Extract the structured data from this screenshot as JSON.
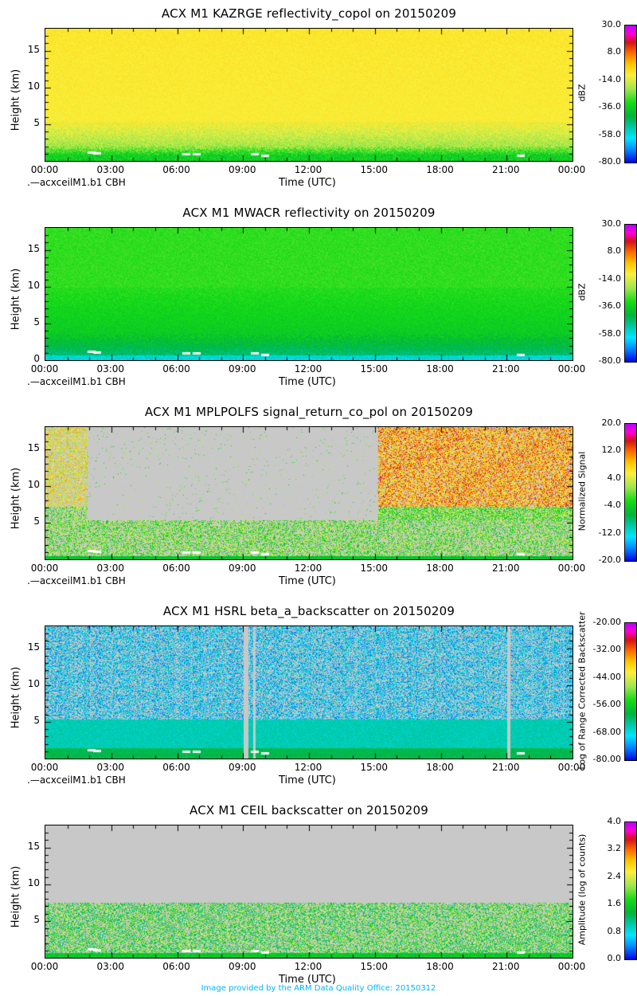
{
  "footer": "Image provided by the ARM Data Quality Office: 20150312",
  "chart_data": [
    {
      "type": "heatmap",
      "title": "ACX M1 KAZRGE reflectivity_copol on 20150209",
      "xlabel": "Time (UTC)",
      "ylabel": "Height (km)",
      "x_ticks": [
        "00:00",
        "03:00",
        "06:00",
        "09:00",
        "12:00",
        "15:00",
        "18:00",
        "21:00",
        "00:00"
      ],
      "y_ticks": [
        "5",
        "10",
        "15"
      ],
      "ylim": [
        0,
        18
      ],
      "colorbar": {
        "label": "dBZ",
        "ticks": [
          "30.0",
          "8.0",
          "-14.0",
          "-36.0",
          "-58.0",
          "-80.0"
        ],
        "range": [
          -80,
          30
        ]
      },
      "note": ".—acxceilM1.b1 CBH",
      "pattern": "kazr"
    },
    {
      "type": "heatmap",
      "title": "ACX M1 MWACR reflectivity on 20150209",
      "xlabel": "Time (UTC)",
      "ylabel": "Height (km)",
      "x_ticks": [
        "00:00",
        "03:00",
        "06:00",
        "09:00",
        "12:00",
        "15:00",
        "18:00",
        "21:00",
        "00:00"
      ],
      "y_ticks": [
        "0",
        "5",
        "10",
        "15"
      ],
      "ylim": [
        0,
        18
      ],
      "colorbar": {
        "label": "dBZ",
        "ticks": [
          "30.0",
          "8.0",
          "-14.0",
          "-36.0",
          "-58.0",
          "-80.0"
        ],
        "range": [
          -80,
          30
        ]
      },
      "note": ".—acxceilM1.b1 CBH",
      "pattern": "mwacr"
    },
    {
      "type": "heatmap",
      "title": "ACX M1 MPLPOLFS signal_return_co_pol on 20150209",
      "xlabel": "Time (UTC)",
      "ylabel": "Height (km)",
      "x_ticks": [
        "00:00",
        "03:00",
        "06:00",
        "09:00",
        "12:00",
        "15:00",
        "18:00",
        "21:00",
        "00:00"
      ],
      "y_ticks": [
        "5",
        "10",
        "15"
      ],
      "ylim": [
        0,
        18
      ],
      "colorbar": {
        "label": "Normalized Signal",
        "ticks": [
          "20.0",
          "12.0",
          "4.0",
          "-4.0",
          "-12.0",
          "-20.0"
        ],
        "range": [
          -20,
          20
        ]
      },
      "note": ".—acxceilM1.b1 CBH",
      "pattern": "mpl"
    },
    {
      "type": "heatmap",
      "title": "ACX M1 HSRL beta_a_backscatter on 20150209",
      "xlabel": "Time (UTC)",
      "ylabel": "Height (km)",
      "x_ticks": [
        "00:00",
        "03:00",
        "06:00",
        "09:00",
        "12:00",
        "15:00",
        "18:00",
        "21:00",
        "00:00"
      ],
      "y_ticks": [
        "5",
        "10",
        "15"
      ],
      "ylim": [
        0,
        18
      ],
      "colorbar": {
        "label": "Log of Range Corrected Backscatter",
        "ticks": [
          "-20.00",
          "-32.00",
          "-44.00",
          "-56.00",
          "-68.00",
          "-80.00"
        ],
        "range": [
          -80,
          -20
        ]
      },
      "note": ".—acxceilM1.b1 CBH",
      "pattern": "hsrl"
    },
    {
      "type": "heatmap",
      "title": "ACX M1 CEIL backscatter on 20150209",
      "xlabel": "Time (UTC)",
      "ylabel": "Height (km)",
      "x_ticks": [
        "00:00",
        "03:00",
        "06:00",
        "09:00",
        "12:00",
        "15:00",
        "18:00",
        "21:00",
        "00:00"
      ],
      "y_ticks": [
        "5",
        "10",
        "15"
      ],
      "ylim": [
        0,
        18
      ],
      "colorbar": {
        "label": "Amplitude (log of counts)",
        "ticks": [
          "4.0",
          "3.2",
          "2.4",
          "1.6",
          "0.8",
          "0.0"
        ],
        "range": [
          0,
          4
        ]
      },
      "note": "",
      "pattern": "ceil"
    }
  ]
}
